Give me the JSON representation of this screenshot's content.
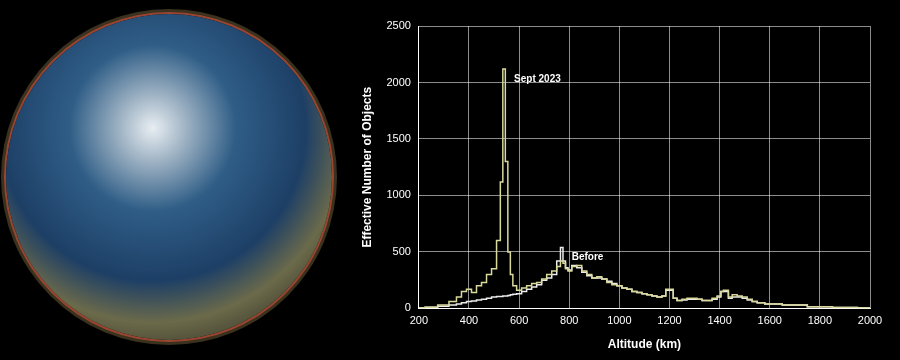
{
  "chart_data": {
    "type": "line",
    "line_style": "steps",
    "x_label": "Altitude (km)",
    "y_label": "Effective Number of Objects",
    "x": [
      200,
      250,
      300,
      340,
      360,
      380,
      400,
      420,
      440,
      460,
      480,
      500,
      520,
      530,
      540,
      550,
      560,
      570,
      580,
      600,
      620,
      640,
      660,
      680,
      700,
      720,
      740,
      760,
      770,
      780,
      790,
      800,
      820,
      840,
      860,
      880,
      900,
      920,
      940,
      960,
      980,
      1000,
      1020,
      1040,
      1060,
      1080,
      1100,
      1120,
      1140,
      1160,
      1180,
      1190,
      1200,
      1210,
      1220,
      1240,
      1260,
      1280,
      1300,
      1320,
      1340,
      1360,
      1380,
      1400,
      1410,
      1420,
      1430,
      1440,
      1460,
      1480,
      1500,
      1520,
      1540,
      1560,
      1600,
      1700,
      1800,
      1900,
      2000
    ],
    "series": [
      {
        "name": "Sept 2023",
        "color": "#d9d99c",
        "values": [
          5,
          10,
          30,
          60,
          100,
          150,
          170,
          140,
          200,
          230,
          300,
          350,
          600,
          1120,
          2120,
          1300,
          500,
          300,
          200,
          160,
          180,
          200,
          220,
          230,
          260,
          300,
          330,
          370,
          420,
          400,
          350,
          330,
          370,
          380,
          330,
          300,
          270,
          280,
          260,
          230,
          210,
          200,
          180,
          170,
          150,
          140,
          130,
          120,
          110,
          100,
          110,
          170,
          170,
          170,
          90,
          70,
          80,
          90,
          90,
          80,
          70,
          70,
          90,
          110,
          150,
          160,
          160,
          100,
          120,
          110,
          100,
          80,
          60,
          50,
          40,
          30,
          15,
          8,
          5
        ]
      },
      {
        "name": "Before",
        "color": "#ececec",
        "values": [
          5,
          10,
          20,
          30,
          40,
          50,
          60,
          65,
          75,
          80,
          90,
          100,
          105,
          105,
          110,
          110,
          115,
          120,
          125,
          130,
          150,
          170,
          190,
          210,
          250,
          270,
          300,
          420,
          540,
          420,
          360,
          340,
          380,
          360,
          320,
          290,
          270,
          270,
          260,
          240,
          220,
          200,
          180,
          170,
          150,
          140,
          130,
          120,
          110,
          100,
          110,
          160,
          160,
          160,
          90,
          70,
          75,
          80,
          80,
          80,
          70,
          70,
          80,
          100,
          150,
          150,
          150,
          90,
          100,
          100,
          90,
          75,
          60,
          50,
          40,
          30,
          15,
          8,
          5
        ]
      }
    ],
    "xlim": [
      200,
      2000
    ],
    "xticks": [
      200,
      400,
      600,
      800,
      1000,
      1200,
      1400,
      1600,
      1800,
      2000
    ],
    "ylim": [
      0,
      2500
    ],
    "yticks": [
      0,
      500,
      1000,
      1500,
      2000,
      2500
    ],
    "grid": true
  }
}
